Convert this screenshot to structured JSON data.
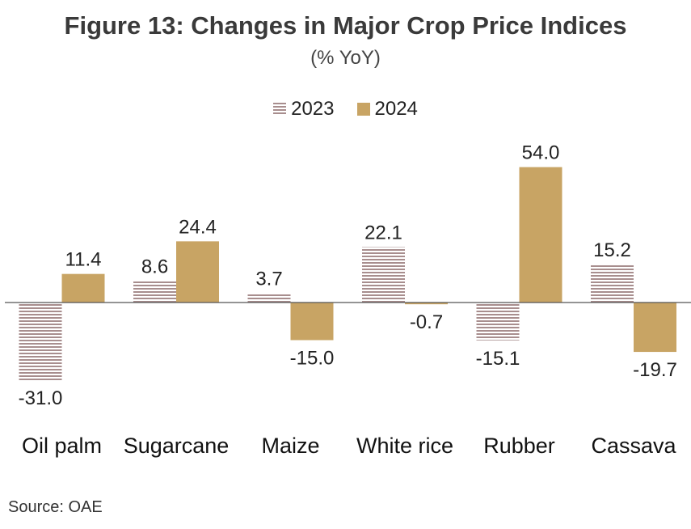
{
  "colors": {
    "series_2023": "#a88e8e",
    "series_2024": "#c8a464",
    "axis": "#555555"
  },
  "chart_data": {
    "type": "bar",
    "title": "Figure 13: Changes in Major Crop Price Indices",
    "subtitle": "(% YoY)",
    "xlabel": "",
    "ylabel": "",
    "ylim": [
      -31,
      54
    ],
    "grid": false,
    "legend_position": "top-center",
    "categories": [
      "Oil palm",
      "Sugarcane",
      "Maize",
      "White rice",
      "Rubber",
      "Cassava"
    ],
    "series": [
      {
        "name": "2023",
        "values": [
          -31.0,
          8.6,
          3.7,
          22.1,
          -15.1,
          15.2
        ],
        "labels": [
          "-31.0",
          "8.6",
          "3.7",
          "22.1",
          "-15.1",
          "15.2"
        ]
      },
      {
        "name": "2024",
        "values": [
          11.4,
          24.4,
          -15.0,
          -0.7,
          54.0,
          -19.7
        ],
        "labels": [
          "11.4",
          "24.4",
          "-15.0",
          "-0.7",
          "54.0",
          "-19.7"
        ]
      }
    ]
  },
  "footer": {
    "source": "Source: OAE"
  }
}
